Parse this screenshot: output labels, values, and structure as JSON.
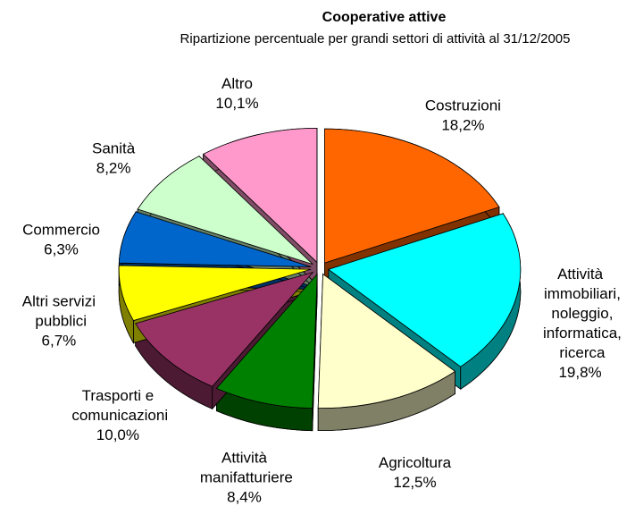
{
  "chart_data": {
    "type": "pie",
    "title": "Cooperative attive",
    "subtitle": "Ripartizione percentuale per grandi settori di attività al 31/12/2005",
    "categories": [
      "Costruzioni",
      "Attività immobiliari, noleggio, informatica, ricerca",
      "Agricoltura",
      "Attività manifatturiere",
      "Trasporti e comunicazioni",
      "Altri servizi pubblici",
      "Commercio",
      "Sanità",
      "Altro"
    ],
    "values": [
      18.2,
      19.8,
      12.5,
      8.4,
      10.0,
      6.7,
      6.3,
      8.2,
      10.1
    ],
    "value_labels": [
      "18,2%",
      "19,8%",
      "12,5%",
      "8,4%",
      "10,0%",
      "6,7%",
      "6,3%",
      "8,2%",
      "10,1%"
    ],
    "colors": [
      "#ff6600",
      "#00ffff",
      "#ffffcc",
      "#008000",
      "#993366",
      "#ffff00",
      "#0066cc",
      "#ccffcc",
      "#ff99cc"
    ]
  }
}
